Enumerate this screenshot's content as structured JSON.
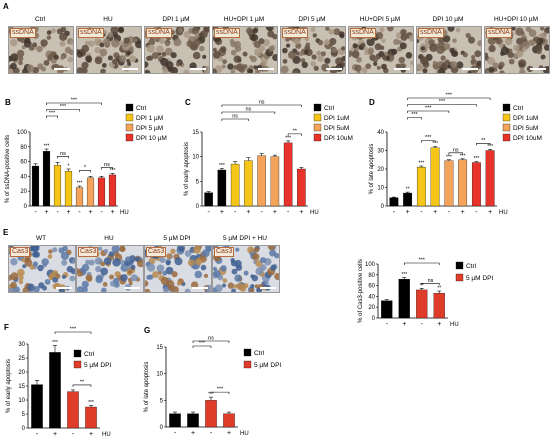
{
  "panelA": {
    "letter": "A",
    "tag": "ssDNA",
    "titles": [
      "Ctrl",
      "HU",
      "DPI 1 µM",
      "HU+DPI 1 µM",
      "DPI 5 µM",
      "HU+DPI 5 µM",
      "DPI 10 µM",
      "HU+DPI 10 µM"
    ]
  },
  "panelE": {
    "letter": "E",
    "tag": "Cas3",
    "titles": [
      "WT",
      "HU",
      "5 µM DPI",
      "5 µM DPI + HU"
    ]
  },
  "colors": {
    "ctrl": "#000000",
    "c1": "#f5c518",
    "c2": "#f3a35a",
    "c3": "#e8332a",
    "red": "#e03c2a"
  },
  "chart_data": [
    {
      "id": "B",
      "type": "bar",
      "letter": "B",
      "ylabel": "% of ssDNA-positive cells",
      "ylim": [
        0,
        100
      ],
      "yticks": [
        0,
        20,
        40,
        60,
        80,
        100
      ],
      "xticks": [
        "-",
        "+",
        "-",
        "+",
        "-",
        "+",
        "-",
        "+"
      ],
      "hu_label": "HU",
      "values": [
        54,
        74,
        55,
        47,
        25,
        38,
        38,
        42
      ],
      "errors": [
        3,
        3,
        4,
        3,
        2,
        2,
        2,
        2
      ],
      "colors": [
        "c",
        "c",
        "1",
        "1",
        "2",
        "2",
        "3",
        "3"
      ],
      "stars": [
        "",
        "***",
        "",
        "*",
        "***",
        "",
        "",
        "***"
      ],
      "legend": [
        "Ctrl",
        "DPI 1 µM",
        "DPI 5 µM",
        "DPI 10 µM"
      ],
      "brackets": [
        {
          "a": 1,
          "b": 2,
          "label": "***",
          "lvl": 1
        },
        {
          "a": 1,
          "b": 4,
          "label": "***",
          "lvl": 2
        },
        {
          "a": 1,
          "b": 6,
          "label": "***",
          "lvl": 3
        },
        {
          "a": 2,
          "b": 3,
          "label": "ns",
          "lvl": 0
        },
        {
          "a": 4,
          "b": 5,
          "label": "*",
          "lvl": 0
        },
        {
          "a": 6,
          "b": 7,
          "label": "ns",
          "lvl": 0
        }
      ]
    },
    {
      "id": "C",
      "type": "bar",
      "letter": "C",
      "ylabel": "% of early apoptosis",
      "ylim": [
        0,
        15
      ],
      "yticks": [
        0,
        5,
        10,
        15
      ],
      "xticks": [
        "-",
        "+",
        "-",
        "+",
        "-",
        "+",
        "-",
        "+"
      ],
      "hu_label": "HU",
      "values": [
        2.7,
        7.3,
        8.5,
        9.2,
        10.2,
        10.0,
        12.8,
        7.5
      ],
      "errors": [
        0.2,
        0.3,
        0.5,
        0.6,
        0.4,
        0.3,
        0.4,
        0.3
      ],
      "colors": [
        "c",
        "c",
        "1",
        "1",
        "2",
        "2",
        "3",
        "3"
      ],
      "stars": [
        "",
        "***",
        "",
        "",
        "",
        "",
        "***",
        ""
      ],
      "legend": [
        "Ctrl",
        "DPI 1uM",
        "DPI 5uM",
        "DPI 10uM"
      ],
      "brackets": [
        {
          "a": 1,
          "b": 3,
          "label": "ns",
          "lvl": 1
        },
        {
          "a": 1,
          "b": 5,
          "label": "ns",
          "lvl": 2
        },
        {
          "a": 1,
          "b": 7,
          "label": "ns",
          "lvl": 3
        },
        {
          "a": 6,
          "b": 7,
          "label": "**",
          "lvl": 0
        }
      ]
    },
    {
      "id": "D",
      "type": "bar",
      "letter": "D",
      "ylabel": "% of late apoptosis",
      "ylim": [
        0,
        40
      ],
      "yticks": [
        0,
        10,
        20,
        30,
        40
      ],
      "xticks": [
        "-",
        "+",
        "-",
        "+",
        "-",
        "+",
        "-",
        "+"
      ],
      "hu_label": "HU",
      "values": [
        4.5,
        7,
        21,
        31.5,
        24.5,
        25,
        23.5,
        30
      ],
      "errors": [
        0.3,
        0.5,
        0.6,
        0.6,
        0.5,
        0.5,
        0.5,
        0.6
      ],
      "colors": [
        "c",
        "c",
        "1",
        "1",
        "2",
        "2",
        "3",
        "3"
      ],
      "stars": [
        "",
        "**",
        "***",
        "***",
        "***",
        "***",
        "***",
        "***"
      ],
      "legend": [
        "Ctrl",
        "DPI 1uM",
        "DPI 5uM",
        "DPI 10uM"
      ],
      "brackets": [
        {
          "a": 1,
          "b": 2,
          "label": "***",
          "lvl": 1
        },
        {
          "a": 1,
          "b": 4,
          "label": "***",
          "lvl": 2
        },
        {
          "a": 1,
          "b": 6,
          "label": "***",
          "lvl": 3
        },
        {
          "a": 1,
          "b": 7,
          "label": "***",
          "lvl": 4
        },
        {
          "a": 2,
          "b": 3,
          "label": "***",
          "lvl": 0
        },
        {
          "a": 4,
          "b": 5,
          "label": "ns",
          "lvl": 0
        },
        {
          "a": 6,
          "b": 7,
          "label": "**",
          "lvl": 0
        }
      ]
    },
    {
      "id": "E2",
      "type": "bar",
      "letter": "",
      "ylabel": "% of Cas3-positive cells",
      "ylim": [
        0,
        100
      ],
      "yticks": [
        0,
        20,
        40,
        60,
        80,
        100
      ],
      "xticks": [
        "-",
        "+",
        "-",
        "+"
      ],
      "hu_label": "HU",
      "values": [
        32,
        72,
        52,
        46
      ],
      "errors": [
        2,
        3,
        3,
        4
      ],
      "colors": [
        "c",
        "c",
        "r",
        "r"
      ],
      "stars": [
        "",
        "***",
        "**",
        "**"
      ],
      "legend": [
        "Ctrl",
        "5 µM DPI"
      ],
      "brackets": [
        {
          "a": 1,
          "b": 3,
          "label": "***",
          "lvl": 1
        },
        {
          "a": 2,
          "b": 3,
          "label": "ns",
          "lvl": 0
        }
      ]
    },
    {
      "id": "F",
      "type": "bar",
      "letter": "F",
      "ylabel": "% of early apoptosis",
      "ylim": [
        0,
        30
      ],
      "yticks": [
        0,
        5,
        10,
        15,
        20,
        25,
        30
      ],
      "xticks": [
        "-",
        "+",
        "-",
        "+"
      ],
      "hu_label": "HU",
      "values": [
        15.5,
        27,
        13,
        7.5
      ],
      "errors": [
        1.5,
        2.5,
        0.6,
        0.5
      ],
      "colors": [
        "c",
        "c",
        "r",
        "r"
      ],
      "stars": [
        "",
        "***",
        "",
        "***"
      ],
      "legend": [
        "Ctrl",
        "5 µM DPI"
      ],
      "brackets": [
        {
          "a": 1,
          "b": 3,
          "label": "***",
          "lvl": 1
        },
        {
          "a": 2,
          "b": 3,
          "label": "**",
          "lvl": 0
        }
      ]
    },
    {
      "id": "G",
      "type": "bar",
      "letter": "G",
      "ylabel": "% of late apoptosis",
      "ylim": [
        0,
        15
      ],
      "yticks": [
        0,
        5,
        10,
        15
      ],
      "xticks": [
        "-",
        "+",
        "-",
        "+"
      ],
      "hu_label": "HU",
      "values": [
        2.5,
        2.5,
        5,
        2.5
      ],
      "errors": [
        0.3,
        0.3,
        0.6,
        0.3
      ],
      "colors": [
        "c",
        "c",
        "r",
        "r"
      ],
      "stars": [
        "",
        "",
        "***",
        ""
      ],
      "legend": [
        "Ctrl",
        "5 µM DPI"
      ],
      "brackets": [
        {
          "a": 1,
          "b": 3,
          "label": "ns",
          "lvl": 2
        },
        {
          "a": 1,
          "b": 2,
          "label": "***",
          "lvl": 1
        },
        {
          "a": 2,
          "b": 3,
          "label": "***",
          "lvl": 0
        }
      ]
    }
  ]
}
